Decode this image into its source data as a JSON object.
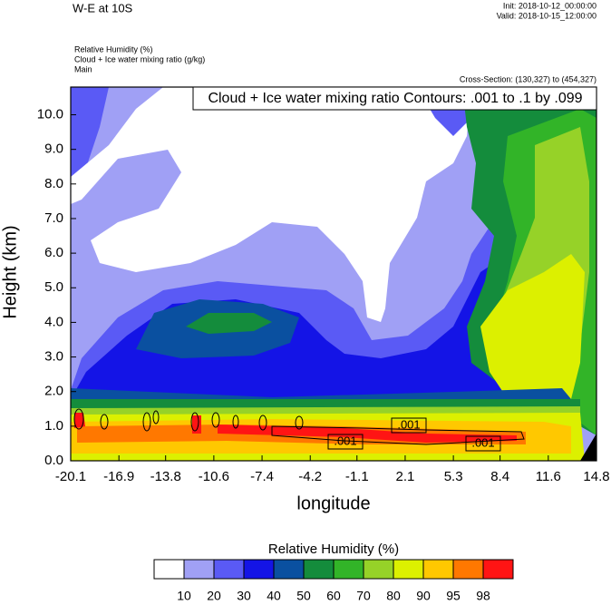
{
  "chart_data": {
    "type": "contour",
    "title": "W-E at 10S",
    "init": "Init: 2018-10-12_00:00:00",
    "valid": "Valid: 2018-10-15_12:00:00",
    "fields": [
      "Relative Humidity   (%)",
      "Cloud + Ice water mixing ratio   (g/kg)",
      "Main"
    ],
    "cross_section": "Cross-Section: (130,327) to (454,327)",
    "annotation": "Cloud + Ice water mixing ratio Contours: .001 to .1 by .099",
    "x_label": "longitude",
    "y_label": "Height (km)",
    "xlim": [
      -20.1,
      14.8
    ],
    "xticks": [
      -20.1,
      -16.9,
      -13.8,
      -10.6,
      -7.4,
      -4.2,
      -1.1,
      2.1,
      5.3,
      8.4,
      11.6,
      14.8
    ],
    "ylim": [
      0,
      10.8
    ],
    "yticks": [
      {
        "value": 0,
        "label": "0.0"
      },
      {
        "value": 1,
        "label": "1.0"
      },
      {
        "value": 2,
        "label": "2.0"
      },
      {
        "value": 3,
        "label": "3.0"
      },
      {
        "value": 4,
        "label": "4.0"
      },
      {
        "value": 5,
        "label": "5.0"
      },
      {
        "value": 6,
        "label": "6.0"
      },
      {
        "value": 7,
        "label": "7.0"
      },
      {
        "value": 8,
        "label": "8.0"
      },
      {
        "value": 9,
        "label": "9.0"
      },
      {
        "value": 10,
        "label": "10.0"
      }
    ],
    "contour_labels": [
      ".001",
      ".001",
      ".001"
    ],
    "colorbar": {
      "title": "Relative Humidity  (%)",
      "levels": [
        10,
        20,
        30,
        40,
        50,
        60,
        70,
        80,
        90,
        95,
        98
      ],
      "colors": [
        "#ffffff",
        "#a0a0f5",
        "#5a5af5",
        "#1414e6",
        "#0a50a0",
        "#148c3c",
        "#32b428",
        "#96d228",
        "#dcf000",
        "#ffc800",
        "#ff7800",
        "#ff1414"
      ]
    }
  }
}
